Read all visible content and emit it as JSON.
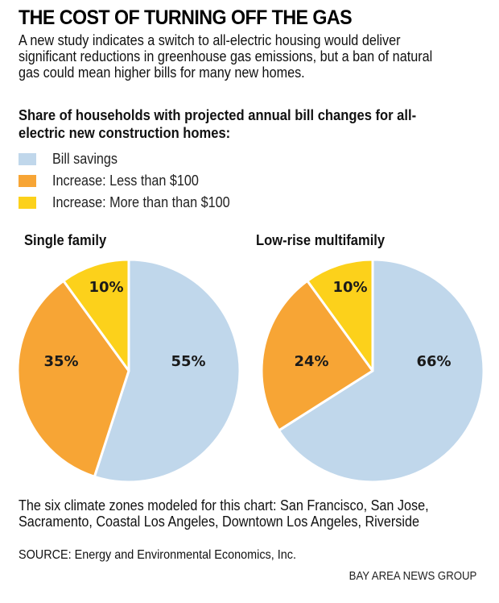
{
  "header": {
    "title": "THE COST OF TURNING OFF THE GAS",
    "intro": "A new study indicates a switch to all-electric housing would deliver significant reductions in greenhouse gas emissions, but a ban of natural gas could mean higher bills for many new homes."
  },
  "subhead": "Share of households with projected annual bill changes for all-electric new construction homes:",
  "legend": [
    {
      "label": "Bill savings",
      "color": "#c0d7eb"
    },
    {
      "label": "Increase: Less than $100",
      "color": "#f7a535"
    },
    {
      "label": "Increase: More than than $100",
      "color": "#fcd11b"
    }
  ],
  "chart_data": [
    {
      "type": "pie",
      "title": "Single family",
      "categories": [
        "Bill savings",
        "Increase: Less than $100",
        "Increase: More than than $100"
      ],
      "values": [
        55,
        35,
        10
      ],
      "labels": [
        "55%",
        "35%",
        "10%"
      ],
      "colors": [
        "#c0d7eb",
        "#f7a535",
        "#fcd11b"
      ]
    },
    {
      "type": "pie",
      "title": "Low-rise multifamily",
      "categories": [
        "Bill savings",
        "Increase: Less than $100",
        "Increase: More than than $100"
      ],
      "values": [
        66,
        24,
        10
      ],
      "labels": [
        "66%",
        "24%",
        "10%"
      ],
      "colors": [
        "#c0d7eb",
        "#f7a535",
        "#fcd11b"
      ]
    }
  ],
  "footer": {
    "note": "The six climate zones modeled for this chart: San Francisco, San Jose, Sacramento, Coastal Los Angeles, Downtown Los Angeles, Riverside",
    "source": "SOURCE: Energy and Environmental Economics, Inc.",
    "credit": "BAY AREA NEWS GROUP"
  }
}
